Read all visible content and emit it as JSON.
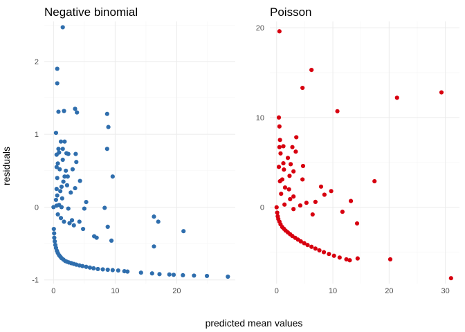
{
  "figure": {
    "xlabel": "predicted mean values",
    "ylabel": "residuals"
  },
  "chart_data": [
    {
      "type": "scatter",
      "title": "Negative binomial",
      "color": "#2F6EAD",
      "xlim": [
        -1.5,
        29.5
      ],
      "ylim": [
        -1.05,
        2.55
      ],
      "xticks": [
        0,
        10,
        20
      ],
      "yticks": [
        -1,
        0,
        1,
        2
      ],
      "grid": true,
      "points": [
        [
          1.5,
          2.47
        ],
        [
          0.6,
          1.9
        ],
        [
          0.6,
          1.7
        ],
        [
          0.8,
          1.31
        ],
        [
          1.7,
          1.32
        ],
        [
          3.5,
          1.35
        ],
        [
          3.8,
          1.3
        ],
        [
          8.7,
          1.28
        ],
        [
          8.9,
          1.1
        ],
        [
          0.4,
          1.02
        ],
        [
          1.2,
          0.9
        ],
        [
          1.8,
          0.9
        ],
        [
          8.7,
          0.8
        ],
        [
          0.8,
          0.8
        ],
        [
          1.5,
          0.8
        ],
        [
          0.9,
          0.75
        ],
        [
          2.1,
          0.74
        ],
        [
          2.4,
          0.73
        ],
        [
          3.6,
          0.73
        ],
        [
          0.5,
          0.72
        ],
        [
          1.5,
          0.65
        ],
        [
          3.7,
          0.62
        ],
        [
          0.7,
          0.6
        ],
        [
          0.5,
          0.55
        ],
        [
          1.0,
          0.52
        ],
        [
          2.0,
          0.5
        ],
        [
          3.1,
          0.52
        ],
        [
          1.8,
          0.42
        ],
        [
          2.3,
          0.42
        ],
        [
          9.6,
          0.42
        ],
        [
          0.6,
          0.4
        ],
        [
          1.6,
          0.35
        ],
        [
          1.3,
          0.28
        ],
        [
          4.3,
          0.36
        ],
        [
          2.2,
          0.3
        ],
        [
          3.5,
          0.26
        ],
        [
          0.5,
          0.25
        ],
        [
          1.1,
          0.22
        ],
        [
          2.8,
          0.2
        ],
        [
          0.6,
          0.16
        ],
        [
          1.4,
          0.12
        ],
        [
          0.4,
          0.1
        ],
        [
          5.3,
          0.07
        ],
        [
          0.9,
          0.03
        ],
        [
          0.0,
          0.0
        ],
        [
          0.5,
          0.02
        ],
        [
          1.3,
          0.0
        ],
        [
          2.4,
          -0.02
        ],
        [
          5.0,
          -0.02
        ],
        [
          8.3,
          -0.01
        ],
        [
          16.3,
          -0.13
        ],
        [
          0.7,
          -0.1
        ],
        [
          1.2,
          -0.15
        ],
        [
          3.0,
          -0.18
        ],
        [
          4.2,
          -0.2
        ],
        [
          17.0,
          -0.2
        ],
        [
          2.6,
          -0.22
        ],
        [
          3.3,
          -0.25
        ],
        [
          8.8,
          -0.27
        ],
        [
          1.7,
          -0.2
        ],
        [
          4.8,
          -0.3
        ],
        [
          21.1,
          -0.33
        ],
        [
          6.6,
          -0.4
        ],
        [
          7.0,
          -0.42
        ],
        [
          9.4,
          -0.46
        ],
        [
          16.3,
          -0.54
        ],
        [
          0.05,
          -0.3
        ],
        [
          0.1,
          -0.36
        ],
        [
          0.12,
          -0.42
        ],
        [
          0.2,
          -0.47
        ],
        [
          0.3,
          -0.52
        ],
        [
          0.4,
          -0.56
        ],
        [
          0.55,
          -0.6
        ],
        [
          0.7,
          -0.63
        ],
        [
          0.9,
          -0.66
        ],
        [
          1.1,
          -0.68
        ],
        [
          1.3,
          -0.7
        ],
        [
          1.6,
          -0.72
        ],
        [
          1.9,
          -0.74
        ],
        [
          2.2,
          -0.75
        ],
        [
          2.5,
          -0.76
        ],
        [
          2.9,
          -0.77
        ],
        [
          3.3,
          -0.78
        ],
        [
          3.7,
          -0.79
        ],
        [
          4.2,
          -0.8
        ],
        [
          4.7,
          -0.81
        ],
        [
          5.3,
          -0.82
        ],
        [
          5.9,
          -0.83
        ],
        [
          6.5,
          -0.84
        ],
        [
          7.2,
          -0.85
        ],
        [
          8.0,
          -0.855
        ],
        [
          8.8,
          -0.86
        ],
        [
          9.6,
          -0.865
        ],
        [
          10.5,
          -0.87
        ],
        [
          11.5,
          -0.88
        ],
        [
          12.0,
          -0.885
        ],
        [
          14.2,
          -0.9
        ],
        [
          16.0,
          -0.91
        ],
        [
          17.2,
          -0.92
        ],
        [
          18.8,
          -0.925
        ],
        [
          19.5,
          -0.93
        ],
        [
          21.0,
          -0.935
        ],
        [
          22.8,
          -0.94
        ],
        [
          24.9,
          -0.945
        ],
        [
          28.3,
          -0.955
        ]
      ]
    },
    {
      "type": "scatter",
      "title": "Poisson",
      "color": "#D7000F",
      "xlim": [
        -1.2,
        32.5
      ],
      "ylim": [
        -8.5,
        20.7
      ],
      "xticks": [
        0,
        10,
        20,
        30
      ],
      "yticks": [
        0,
        10,
        20
      ],
      "grid": true,
      "points": [
        [
          0.5,
          19.6
        ],
        [
          6.2,
          15.3
        ],
        [
          4.6,
          13.3
        ],
        [
          10.8,
          10.7
        ],
        [
          21.4,
          12.2
        ],
        [
          29.3,
          12.8
        ],
        [
          0.4,
          10.0
        ],
        [
          0.5,
          9.0
        ],
        [
          3.5,
          7.8
        ],
        [
          0.6,
          7.5
        ],
        [
          0.5,
          6.7
        ],
        [
          1.2,
          6.8
        ],
        [
          2.8,
          6.7
        ],
        [
          0.7,
          6.0
        ],
        [
          3.4,
          6.2
        ],
        [
          2.0,
          5.5
        ],
        [
          2.5,
          4.8
        ],
        [
          1.2,
          4.9
        ],
        [
          0.4,
          4.5
        ],
        [
          4.7,
          4.6
        ],
        [
          1.3,
          4.2
        ],
        [
          3.0,
          4.0
        ],
        [
          2.3,
          3.5
        ],
        [
          1.0,
          3.1
        ],
        [
          4.6,
          3.1
        ],
        [
          0.6,
          2.9
        ],
        [
          17.4,
          2.9
        ],
        [
          1.5,
          2.2
        ],
        [
          2.2,
          2.0
        ],
        [
          7.9,
          2.3
        ],
        [
          9.7,
          1.8
        ],
        [
          3.0,
          1.2
        ],
        [
          8.5,
          1.4
        ],
        [
          0.8,
          1.5
        ],
        [
          13.2,
          0.7
        ],
        [
          2.4,
          0.9
        ],
        [
          5.3,
          0.5
        ],
        [
          6.9,
          0.6
        ],
        [
          4.2,
          0.2
        ],
        [
          1.4,
          0.3
        ],
        [
          3.0,
          -0.2
        ],
        [
          11.7,
          -0.5
        ],
        [
          6.4,
          -0.8
        ],
        [
          14.3,
          -1.8
        ],
        [
          20.2,
          -5.8
        ],
        [
          31.0,
          -7.9
        ],
        [
          0.0,
          0.0
        ],
        [
          0.1,
          -0.6
        ],
        [
          0.2,
          -1.0
        ],
        [
          0.3,
          -1.3
        ],
        [
          0.5,
          -1.6
        ],
        [
          0.7,
          -1.9
        ],
        [
          1.0,
          -2.2
        ],
        [
          1.3,
          -2.4
        ],
        [
          1.6,
          -2.6
        ],
        [
          2.0,
          -2.8
        ],
        [
          2.4,
          -3.0
        ],
        [
          2.8,
          -3.2
        ],
        [
          3.3,
          -3.4
        ],
        [
          3.8,
          -3.6
        ],
        [
          4.3,
          -3.8
        ],
        [
          4.9,
          -4.0
        ],
        [
          5.5,
          -4.2
        ],
        [
          6.2,
          -4.4
        ],
        [
          6.9,
          -4.6
        ],
        [
          7.6,
          -4.8
        ],
        [
          8.4,
          -5.0
        ],
        [
          9.3,
          -5.2
        ],
        [
          10.2,
          -5.4
        ],
        [
          11.2,
          -5.6
        ],
        [
          12.4,
          -5.8
        ],
        [
          13.0,
          -5.9
        ],
        [
          14.4,
          -5.7
        ]
      ]
    }
  ]
}
